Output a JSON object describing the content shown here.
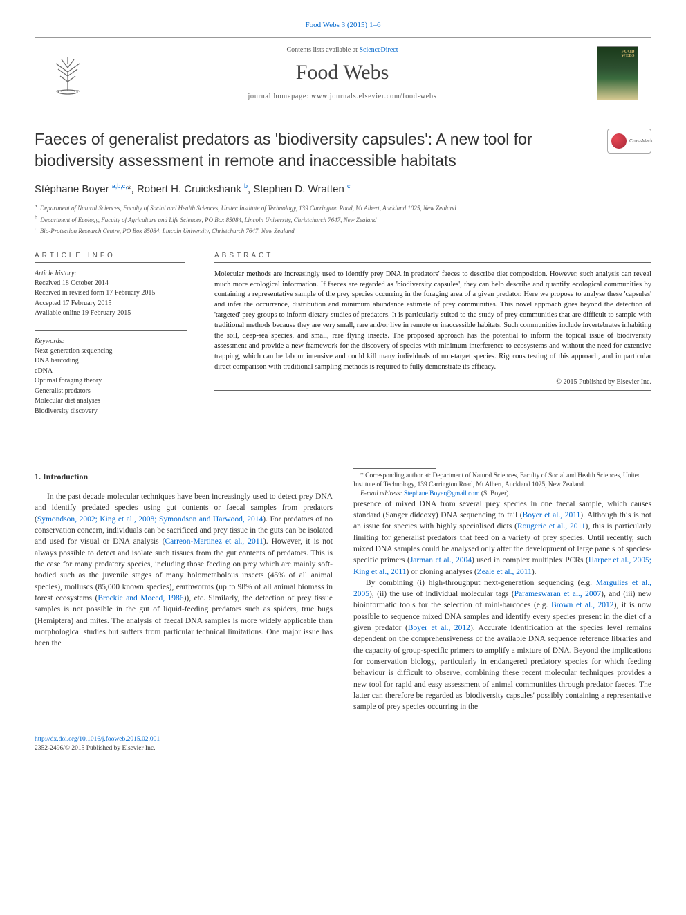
{
  "header": {
    "citation_link": "Food Webs 3 (2015) 1–6",
    "contents_text_pre": "Contents lists available at ",
    "contents_text_link": "ScienceDirect",
    "journal_title": "Food Webs",
    "homepage_text": "journal homepage: www.journals.elsevier.com/food-webs",
    "cover_label": "FOOD\nWEBS"
  },
  "crossmark_label": "CrossMark",
  "article": {
    "title": "Faeces of generalist predators as 'biodiversity capsules': A new tool for biodiversity assessment in remote and inaccessible habitats",
    "authors_html": "Stéphane Boyer <sup>a,b,c,</sup><span class='star'>*</span>, Robert H. Cruickshank <sup>b</sup>, Stephen D. Wratten <sup>c</sup>",
    "affiliations": [
      {
        "key": "a",
        "text": "Department of Natural Sciences, Faculty of Social and Health Sciences, Unitec Institute of Technology, 139 Carrington Road, Mt Albert, Auckland 1025, New Zealand"
      },
      {
        "key": "b",
        "text": "Department of Ecology, Faculty of Agriculture and Life Sciences, PO Box 85084, Lincoln University, Christchurch 7647, New Zealand"
      },
      {
        "key": "c",
        "text": "Bio-Protection Research Centre, PO Box 85084, Lincoln University, Christchurch 7647, New Zealand"
      }
    ]
  },
  "info": {
    "heading_info": "article info",
    "heading_abstract": "abstract",
    "history_label": "Article history:",
    "history": [
      "Received 18 October 2014",
      "Received in revised form 17 February 2015",
      "Accepted 17 February 2015",
      "Available online 19 February 2015"
    ],
    "keywords_label": "Keywords:",
    "keywords": [
      "Next-generation sequencing",
      "DNA barcoding",
      "eDNA",
      "Optimal foraging theory",
      "Generalist predators",
      "Molecular diet analyses",
      "Biodiversity discovery"
    ]
  },
  "abstract": "Molecular methods are increasingly used to identify prey DNA in predators' faeces to describe diet composition. However, such analysis can reveal much more ecological information. If faeces are regarded as 'biodiversity capsules', they can help describe and quantify ecological communities by containing a representative sample of the prey species occurring in the foraging area of a given predator. Here we propose to analyse these 'capsules' and infer the occurrence, distribution and minimum abundance estimate of prey communities. This novel approach goes beyond the detection of 'targeted' prey groups to inform dietary studies of predators. It is particularly suited to the study of prey communities that are difficult to sample with traditional methods because they are very small, rare and/or live in remote or inaccessible habitats. Such communities include invertebrates inhabiting the soil, deep-sea species, and small, rare flying insects. The proposed approach has the potential to inform the topical issue of biodiversity assessment and provide a new framework for the discovery of species with minimum interference to ecosystems and without the need for extensive trapping, which can be labour intensive and could kill many individuals of non-target species. Rigorous testing of this approach, and in particular direct comparison with traditional sampling methods is required to fully demonstrate its efficacy.",
  "copyright": "© 2015 Published by Elsevier Inc.",
  "body": {
    "section_heading": "1. Introduction",
    "para1_parts": [
      "In the past decade molecular techniques have been increasingly used to detect prey DNA and identify predated species using gut contents or faecal samples from predators (",
      "Symondson, 2002; King et al., 2008; Symondson and Harwood, 2014",
      "). For predators of no conservation concern, individuals can be sacrificed and prey tissue in the guts can be isolated and used for visual or DNA analysis (",
      "Carreon-Martinez et al., 2011",
      "). However, it is not always possible to detect and isolate such tissues from the gut contents of predators. This is the case for many predatory species, including those feeding on prey which are mainly soft-bodied such as the juvenile stages of many holometabolous insects (45% of all animal species), molluscs (85,000 known species), earthworms (up to 98% of all animal biomass in forest ecosystems (",
      "Brockie and Moeed, 1986",
      ")), etc. Similarly, the detection of prey tissue samples is not possible in the gut of liquid-feeding predators such as spiders, true bugs (Hemiptera) and mites. The analysis of faecal DNA samples is more widely applicable than morphological studies but suffers from particular technical limitations. One major issue has been the "
    ],
    "para1b_parts": [
      "presence of mixed DNA from several prey species in one faecal sample, which causes standard (Sanger dideoxy) DNA sequencing to fail (",
      "Boyer et al., 2011",
      "). Although this is not an issue for species with highly specialised diets (",
      "Rougerie et al., 2011",
      "), this is particularly limiting for generalist predators that feed on a variety of prey species. Until recently, such mixed DNA samples could be analysed only after the development of large panels of species-specific primers (",
      "Jarman et al., 2004",
      ") used in complex multiplex PCRs (",
      "Harper et al., 2005; King et al., 2011",
      ") or cloning analyses (",
      "Zeale et al., 2011",
      ")."
    ],
    "para2_parts": [
      "By combining (i) high-throughput next-generation sequencing (e.g. ",
      "Margulies et al., 2005",
      "), (ii) the use of individual molecular tags (",
      "Parameswaran et al., 2007",
      "), and (iii) new bioinformatic tools for the selection of mini-barcodes (e.g. ",
      "Brown et al., 2012",
      "), it is now possible to sequence mixed DNA samples and identify every species present in the diet of a given predator (",
      "Boyer et al., 2012",
      "). Accurate identification at the species level remains dependent on the comprehensiveness of the available DNA sequence reference libraries and the capacity of group-specific primers to amplify a mixture of DNA. Beyond the implications for conservation biology, particularly in endangered predatory species for which feeding behaviour is difficult to observe, combining these recent molecular techniques provides a new tool for rapid and easy assessment of animal communities through predator faeces. The latter can therefore be regarded as 'biodiversity capsules' possibly containing a representative sample of prey species occurring in the "
    ]
  },
  "footnote": {
    "corresponding": "* Corresponding author at: Department of Natural Sciences, Faculty of Social and Health Sciences, Unitec Institute of Technology, 139 Carrington Road, Mt Albert, Auckland 1025, New Zealand.",
    "email_label": "E-mail address: ",
    "email": "Stephane.Boyer@gmail.com",
    "email_suffix": " (S. Boyer)."
  },
  "footer": {
    "doi": "http://dx.doi.org/10.1016/j.fooweb.2015.02.001",
    "issn_line": "2352-2496/© 2015 Published by Elsevier Inc."
  },
  "colors": {
    "link": "#0066cc",
    "text": "#333333",
    "rule": "#999999"
  }
}
